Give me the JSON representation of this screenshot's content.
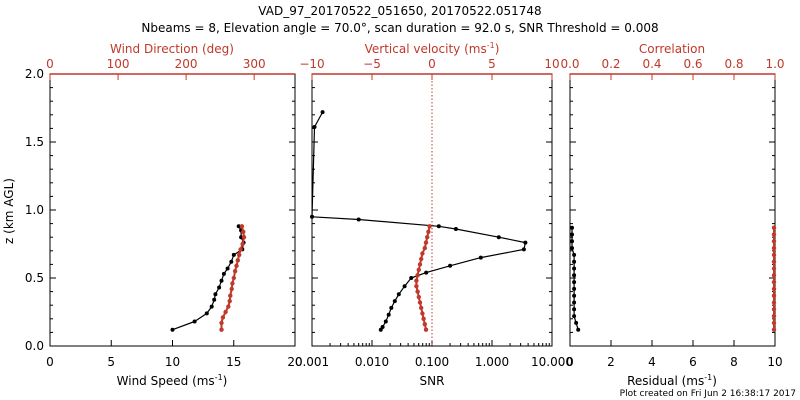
{
  "title_line1": "VAD_97_20170522_051650, 20170522.051748",
  "title_line2": "Nbeams = 8, Elevation angle = 70.0°, scan duration = 92.0 s, SNR Threshold = 0.008",
  "footer": "Plot created on Fri Jun  2 16:38:17 2017",
  "colors": {
    "axis": "#000000",
    "red": "#c0392b"
  },
  "chart_data": [
    {
      "type": "line",
      "panel": "wind",
      "ylabel": "z (km AGL)",
      "ylim": [
        0.0,
        2.0
      ],
      "y_ticks": [
        "0.0",
        "0.5",
        "1.0",
        "1.5",
        "2.0"
      ],
      "bottom_axis": {
        "label": "Wind Speed",
        "unit": "(ms",
        "unit_exp": "-1",
        "unit_close": ")",
        "range": [
          0,
          20
        ],
        "ticks": [
          "0",
          "5",
          "10",
          "15",
          "20"
        ]
      },
      "top_axis": {
        "label": "Wind Direction (deg)",
        "range": [
          0,
          360
        ],
        "ticks": [
          "0",
          "100",
          "200",
          "300"
        ]
      },
      "series": [
        {
          "axis": "bottom",
          "points": [
            [
              10.0,
              0.12
            ],
            [
              11.8,
              0.18
            ],
            [
              12.8,
              0.24
            ],
            [
              13.2,
              0.29
            ],
            [
              13.4,
              0.34
            ],
            [
              13.5,
              0.38
            ],
            [
              13.8,
              0.43
            ],
            [
              14.0,
              0.48
            ],
            [
              14.2,
              0.53
            ],
            [
              14.5,
              0.57
            ],
            [
              14.8,
              0.62
            ],
            [
              15.0,
              0.67
            ],
            [
              15.7,
              0.71
            ],
            [
              15.8,
              0.76
            ],
            [
              15.6,
              0.8
            ],
            [
              15.6,
              0.85
            ],
            [
              15.4,
              0.88
            ]
          ]
        },
        {
          "axis": "top",
          "points": [
            [
              252,
              0.12
            ],
            [
              252,
              0.17
            ],
            [
              254,
              0.21
            ],
            [
              258,
              0.25
            ],
            [
              262,
              0.29
            ],
            [
              264,
              0.33
            ],
            [
              265,
              0.37
            ],
            [
              267,
              0.42
            ],
            [
              268,
              0.46
            ],
            [
              270,
              0.5
            ],
            [
              272,
              0.55
            ],
            [
              274,
              0.59
            ],
            [
              276,
              0.63
            ],
            [
              278,
              0.67
            ],
            [
              280,
              0.71
            ],
            [
              283,
              0.75
            ],
            [
              285,
              0.8
            ],
            [
              284,
              0.84
            ],
            [
              282,
              0.88
            ]
          ]
        }
      ]
    },
    {
      "type": "line",
      "panel": "vertical",
      "ylim": [
        0.0,
        2.0
      ],
      "bottom_axis": {
        "label": "SNR",
        "scale": "log",
        "range": [
          0.001,
          10.0
        ],
        "ticks": [
          "0.001",
          "0.010",
          "0.100",
          "1.000",
          "10.000"
        ]
      },
      "top_axis": {
        "label": "Vertical velocity (ms",
        "unit_exp": "-1",
        "unit_close": ")",
        "range": [
          -10,
          10
        ],
        "ticks": [
          "−10",
          "−5",
          "0",
          "5",
          "10"
        ]
      },
      "series": [
        {
          "axis": "bottom",
          "points": [
            [
              0.0015,
              1.72
            ],
            [
              0.0011,
              1.61
            ],
            [
              0.001,
              0.95
            ],
            [
              0.006,
              0.93
            ],
            [
              0.13,
              0.88
            ],
            [
              0.25,
              0.86
            ],
            [
              1.3,
              0.8
            ],
            [
              3.6,
              0.76
            ],
            [
              3.4,
              0.71
            ],
            [
              0.65,
              0.65
            ],
            [
              0.2,
              0.59
            ],
            [
              0.08,
              0.54
            ],
            [
              0.045,
              0.5
            ],
            [
              0.035,
              0.44
            ],
            [
              0.028,
              0.38
            ],
            [
              0.024,
              0.33
            ],
            [
              0.021,
              0.28
            ],
            [
              0.019,
              0.23
            ],
            [
              0.017,
              0.18
            ],
            [
              0.015,
              0.14
            ],
            [
              0.014,
              0.12
            ]
          ]
        },
        {
          "axis": "top",
          "points": [
            [
              -0.5,
              0.12
            ],
            [
              -0.6,
              0.16
            ],
            [
              -0.7,
              0.2
            ],
            [
              -0.8,
              0.24
            ],
            [
              -0.9,
              0.28
            ],
            [
              -1.0,
              0.32
            ],
            [
              -1.1,
              0.36
            ],
            [
              -1.2,
              0.4
            ],
            [
              -1.3,
              0.44
            ],
            [
              -1.3,
              0.48
            ],
            [
              -1.2,
              0.52
            ],
            [
              -1.1,
              0.56
            ],
            [
              -1.0,
              0.6
            ],
            [
              -0.9,
              0.64
            ],
            [
              -0.8,
              0.68
            ],
            [
              -0.6,
              0.72
            ],
            [
              -0.5,
              0.76
            ],
            [
              -0.4,
              0.8
            ],
            [
              -0.3,
              0.84
            ],
            [
              -0.2,
              0.88
            ]
          ]
        }
      ],
      "reference_line": {
        "axis": "top",
        "value": 0
      }
    },
    {
      "type": "line",
      "panel": "residual",
      "ylim": [
        0.0,
        2.0
      ],
      "bottom_axis": {
        "label": "Residual",
        "unit": "(ms",
        "unit_exp": "-1",
        "unit_close": ")",
        "range": [
          0,
          10
        ],
        "ticks": [
          "0",
          "2",
          "4",
          "6",
          "8",
          "10"
        ]
      },
      "top_axis": {
        "label": "Correlation",
        "range": [
          0.0,
          1.0
        ],
        "ticks": [
          "0.0",
          "0.2",
          "0.4",
          "0.6",
          "0.8",
          "1.0"
        ]
      },
      "series": [
        {
          "axis": "bottom",
          "points": [
            [
              0.4,
              0.12
            ],
            [
              0.3,
              0.17
            ],
            [
              0.2,
              0.22
            ],
            [
              0.2,
              0.27
            ],
            [
              0.2,
              0.32
            ],
            [
              0.2,
              0.37
            ],
            [
              0.2,
              0.42
            ],
            [
              0.2,
              0.47
            ],
            [
              0.2,
              0.52
            ],
            [
              0.2,
              0.57
            ],
            [
              0.2,
              0.62
            ],
            [
              0.2,
              0.67
            ],
            [
              0.1,
              0.72
            ],
            [
              0.1,
              0.77
            ],
            [
              0.1,
              0.82
            ],
            [
              0.1,
              0.87
            ]
          ]
        },
        {
          "axis": "top",
          "points": [
            [
              0.995,
              0.12
            ],
            [
              0.995,
              0.17
            ],
            [
              0.995,
              0.22
            ],
            [
              0.995,
              0.27
            ],
            [
              0.995,
              0.32
            ],
            [
              0.995,
              0.37
            ],
            [
              0.995,
              0.42
            ],
            [
              0.995,
              0.47
            ],
            [
              0.995,
              0.52
            ],
            [
              0.995,
              0.57
            ],
            [
              0.995,
              0.62
            ],
            [
              0.995,
              0.67
            ],
            [
              0.995,
              0.72
            ],
            [
              0.995,
              0.77
            ],
            [
              0.995,
              0.82
            ],
            [
              0.995,
              0.87
            ]
          ]
        }
      ]
    }
  ]
}
